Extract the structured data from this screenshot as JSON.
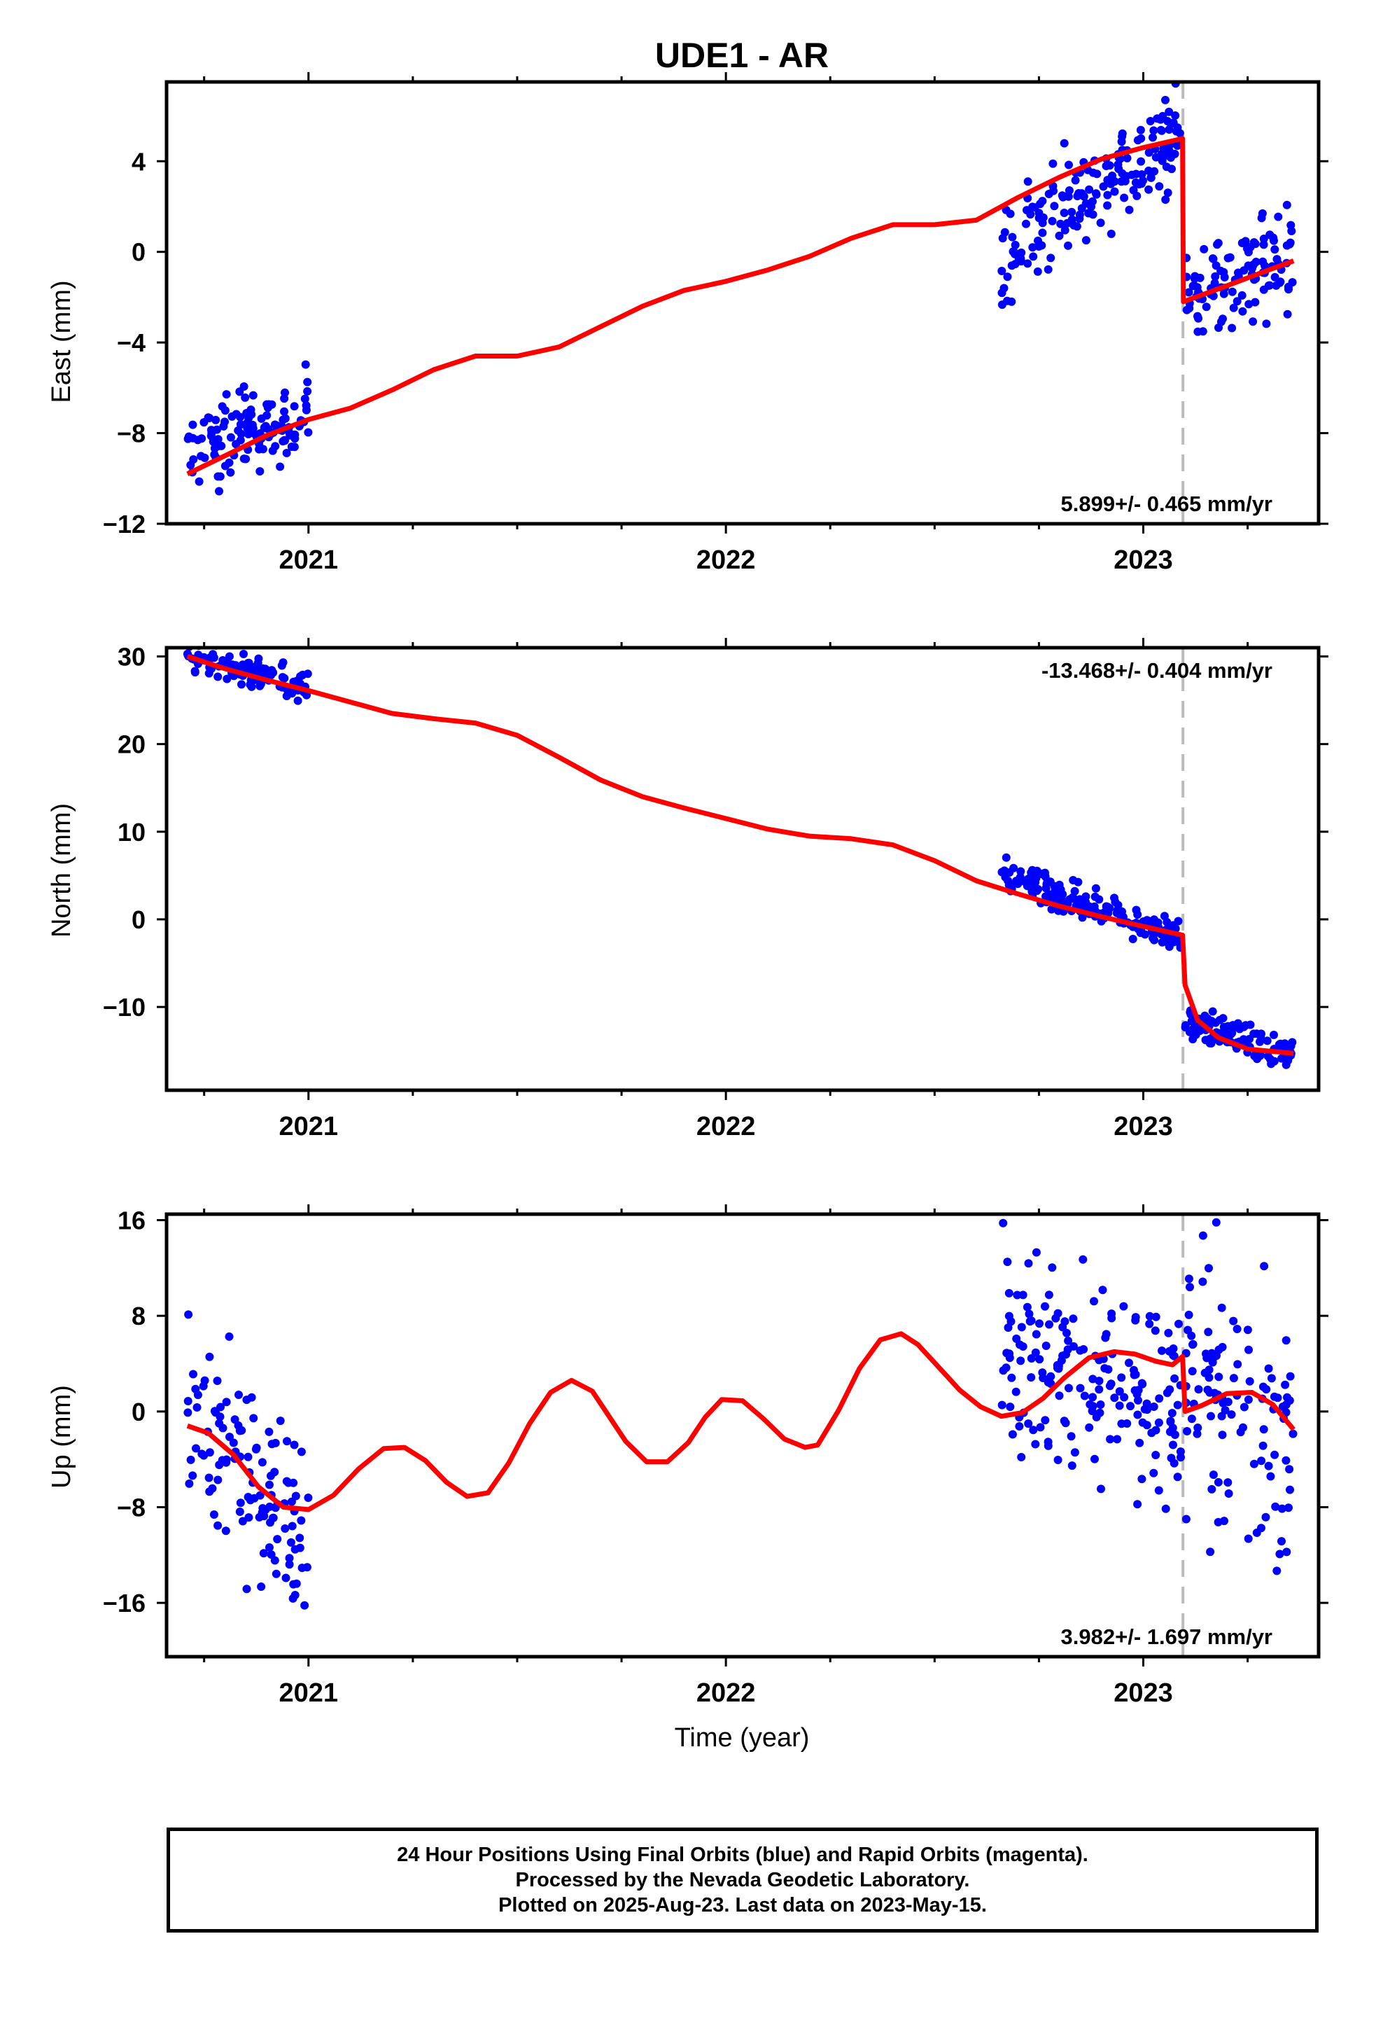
{
  "figure": {
    "title": "UDE1 - AR",
    "xlabel": "Time (year)",
    "x_ticks": [
      "2021",
      "2022",
      "2023"
    ]
  },
  "colors": {
    "final_orbits": "#0000ff",
    "model_fit": "#ff0000",
    "event_line": "#bbbbbb"
  },
  "chart_data": [
    {
      "type": "scatter",
      "title": "UDE1 - AR",
      "ylabel": "East (mm)",
      "xlim": [
        2020.66,
        2023.42
      ],
      "ylim": [
        -12,
        7.5
      ],
      "y_ticks": [
        4,
        0,
        -4,
        -8,
        -12
      ],
      "x_ticks": [
        2021,
        2022,
        2023
      ],
      "rate_label": "5.899+/- 0.465 mm/yr",
      "rate_position": "bottom-right",
      "event_x": 2023.095,
      "grid": false,
      "series": [
        {
          "name": "Final Orbits",
          "style": "points",
          "data_clusters": [
            {
              "x": [
                2020.71,
                2021.0
              ],
              "y_start": -9.0,
              "y_end": -7.0,
              "noise": 0.9
            },
            {
              "x": [
                2022.66,
                2023.09
              ],
              "y_start": 0.0,
              "y_end": 5.3,
              "noise": 1.1
            },
            {
              "x": [
                2023.1,
                2023.36
              ],
              "y_start": -2.2,
              "y_end": 0.2,
              "noise": 1.1
            }
          ]
        },
        {
          "name": "Model",
          "style": "line",
          "x": [
            2020.71,
            2020.8,
            2020.9,
            2021.0,
            2021.1,
            2021.2,
            2021.3,
            2021.4,
            2021.5,
            2021.6,
            2021.7,
            2021.8,
            2021.9,
            2022.0,
            2022.1,
            2022.2,
            2022.3,
            2022.4,
            2022.5,
            2022.6,
            2022.7,
            2022.8,
            2022.9,
            2023.0,
            2023.094,
            2023.096,
            2023.2,
            2023.3,
            2023.36
          ],
          "y": [
            -9.8,
            -9.0,
            -8.1,
            -7.4,
            -6.9,
            -6.1,
            -5.2,
            -4.6,
            -4.6,
            -4.2,
            -3.3,
            -2.4,
            -1.7,
            -1.3,
            -0.8,
            -0.2,
            0.6,
            1.2,
            1.2,
            1.4,
            2.4,
            3.3,
            4.1,
            4.6,
            5.0,
            -2.2,
            -1.5,
            -0.8,
            -0.4
          ]
        }
      ]
    },
    {
      "type": "scatter",
      "ylabel": "North (mm)",
      "xlim": [
        2020.66,
        2023.42
      ],
      "ylim": [
        -19.5,
        31
      ],
      "y_ticks": [
        30,
        20,
        10,
        0,
        -10
      ],
      "x_ticks": [
        2021,
        2022,
        2023
      ],
      "rate_label": "-13.468+/- 0.404 mm/yr",
      "rate_position": "top-right",
      "event_x": 2023.095,
      "grid": false,
      "series": [
        {
          "name": "Final Orbits",
          "style": "points",
          "data_clusters": [
            {
              "x": [
                2020.71,
                2021.0
              ],
              "y_start": 29.8,
              "y_end": 26.5,
              "noise": 0.9
            },
            {
              "x": [
                2022.66,
                2023.09
              ],
              "y_start": 5.0,
              "y_end": -2.0,
              "noise": 0.9
            },
            {
              "x": [
                2023.1,
                2023.36
              ],
              "y_start": -11.5,
              "y_end": -15.5,
              "noise": 0.9
            }
          ]
        },
        {
          "name": "Model",
          "style": "line",
          "x": [
            2020.71,
            2020.8,
            2020.9,
            2021.0,
            2021.1,
            2021.2,
            2021.3,
            2021.4,
            2021.5,
            2021.6,
            2021.7,
            2021.8,
            2021.9,
            2022.0,
            2022.1,
            2022.2,
            2022.3,
            2022.4,
            2022.5,
            2022.6,
            2022.7,
            2022.8,
            2022.9,
            2023.0,
            2023.094,
            2023.1,
            2023.13,
            2023.18,
            2023.25,
            2023.36
          ],
          "y": [
            30.0,
            28.6,
            27.3,
            26.1,
            24.8,
            23.5,
            22.9,
            22.4,
            21.0,
            18.5,
            15.9,
            14.0,
            12.7,
            11.5,
            10.3,
            9.5,
            9.2,
            8.5,
            6.7,
            4.4,
            2.9,
            1.5,
            0.3,
            -0.8,
            -1.8,
            -7.5,
            -11.5,
            -13.5,
            -14.8,
            -15.3
          ]
        }
      ]
    },
    {
      "type": "scatter",
      "ylabel": "Up (mm)",
      "xlabel": "Time (year)",
      "xlim": [
        2020.66,
        2023.42
      ],
      "ylim": [
        -20.5,
        16.5
      ],
      "y_ticks": [
        16,
        8,
        0,
        -8,
        -16
      ],
      "x_ticks": [
        2021,
        2022,
        2023
      ],
      "rate_label": "3.982+/- 1.697 mm/yr",
      "rate_position": "bottom-right",
      "event_x": 2023.095,
      "grid": false,
      "series": [
        {
          "name": "Final Orbits",
          "style": "points",
          "data_clusters": [
            {
              "x": [
                2020.71,
                2021.0
              ],
              "y_start": 0.5,
              "y_end": -10.5,
              "noise": 4.2
            },
            {
              "x": [
                2022.66,
                2023.09
              ],
              "y_start": 5.5,
              "y_end": 0.5,
              "noise": 4.5
            },
            {
              "x": [
                2023.1,
                2023.36
              ],
              "y_start": 3.0,
              "y_end": -3.5,
              "noise": 5.0
            }
          ]
        },
        {
          "name": "Model",
          "style": "line",
          "x": [
            2020.71,
            2020.76,
            2020.82,
            2020.88,
            2020.94,
            2021.0,
            2021.06,
            2021.12,
            2021.18,
            2021.23,
            2021.28,
            2021.33,
            2021.38,
            2021.43,
            2021.48,
            2021.53,
            2021.58,
            2021.63,
            2021.68,
            2021.72,
            2021.76,
            2021.81,
            2021.86,
            2021.91,
            2021.95,
            2021.99,
            2022.04,
            2022.09,
            2022.14,
            2022.19,
            2022.22,
            2022.27,
            2022.32,
            2022.37,
            2022.42,
            2022.46,
            2022.51,
            2022.56,
            2022.61,
            2022.66,
            2022.71,
            2022.76,
            2022.81,
            2022.87,
            2022.93,
            2022.98,
            2023.03,
            2023.07,
            2023.094,
            2023.1,
            2023.14,
            2023.2,
            2023.26,
            2023.31,
            2023.36
          ],
          "y": [
            -1.2,
            -1.8,
            -3.6,
            -6.3,
            -8.0,
            -8.2,
            -7.0,
            -4.8,
            -3.1,
            -3.0,
            -4.1,
            -5.9,
            -7.1,
            -6.8,
            -4.3,
            -1.0,
            1.6,
            2.6,
            1.7,
            -0.4,
            -2.5,
            -4.2,
            -4.2,
            -2.6,
            -0.5,
            1.0,
            0.9,
            -0.6,
            -2.3,
            -3.0,
            -2.8,
            0.1,
            3.6,
            6.0,
            6.5,
            5.6,
            3.7,
            1.8,
            0.4,
            -0.4,
            -0.1,
            1.1,
            2.8,
            4.5,
            5.0,
            4.8,
            4.2,
            3.9,
            4.6,
            0.0,
            0.5,
            1.5,
            1.6,
            0.6,
            -1.5
          ]
        }
      ]
    }
  ],
  "footer": {
    "line1": "24 Hour Positions Using Final Orbits (blue) and Rapid Orbits (magenta).",
    "line2": "Processed by the Nevada Geodetic Laboratory.",
    "line3": "Plotted on 2025-Aug-23. Last data on 2023-May-15."
  }
}
